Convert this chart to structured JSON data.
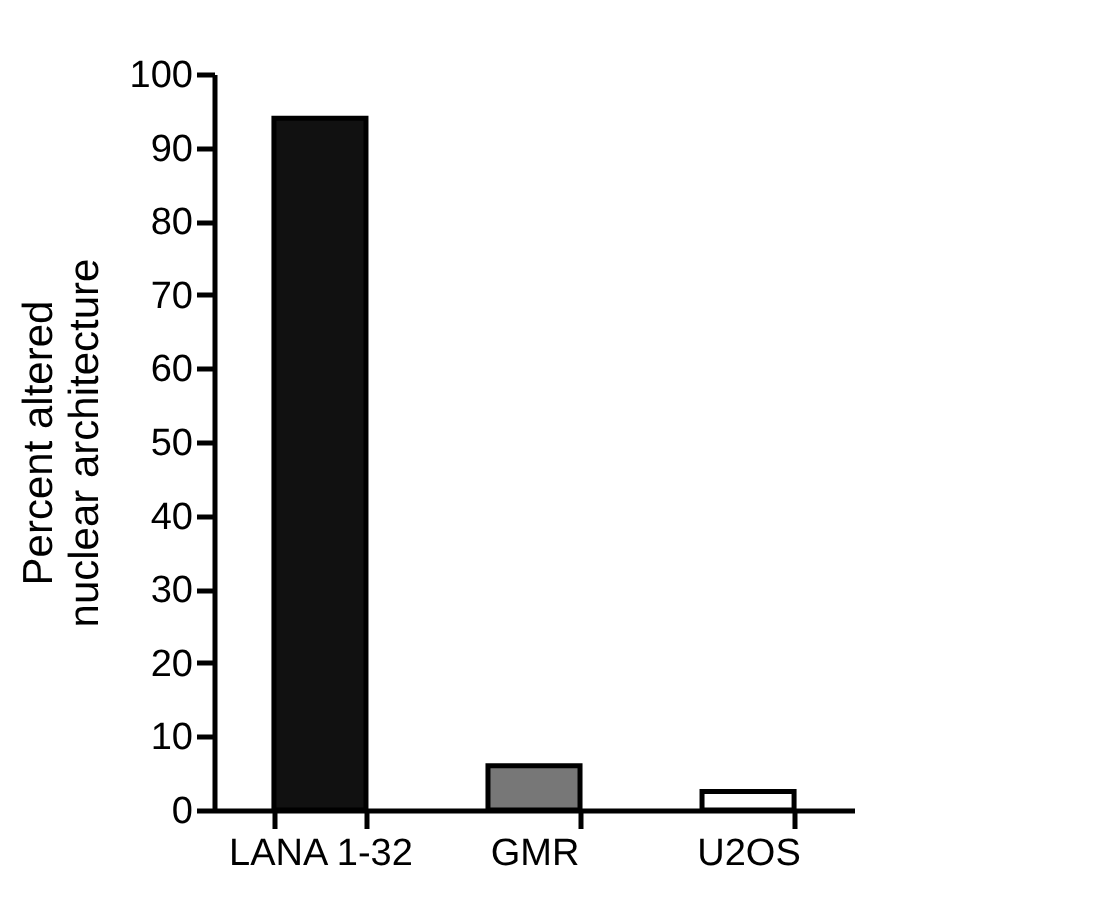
{
  "chart_data": {
    "type": "bar",
    "ylabel": "Percent altered\nnuclear architecture",
    "categories": [
      "LANA 1-32",
      "GMR",
      "U2OS"
    ],
    "values": [
      94,
      6,
      2.5
    ],
    "colors": [
      "#111111",
      "#777777",
      "#ffffff"
    ],
    "ylim": [
      0,
      100
    ],
    "yticks": [
      0,
      10,
      20,
      30,
      40,
      50,
      60,
      70,
      80,
      90,
      100
    ],
    "grid": false
  }
}
